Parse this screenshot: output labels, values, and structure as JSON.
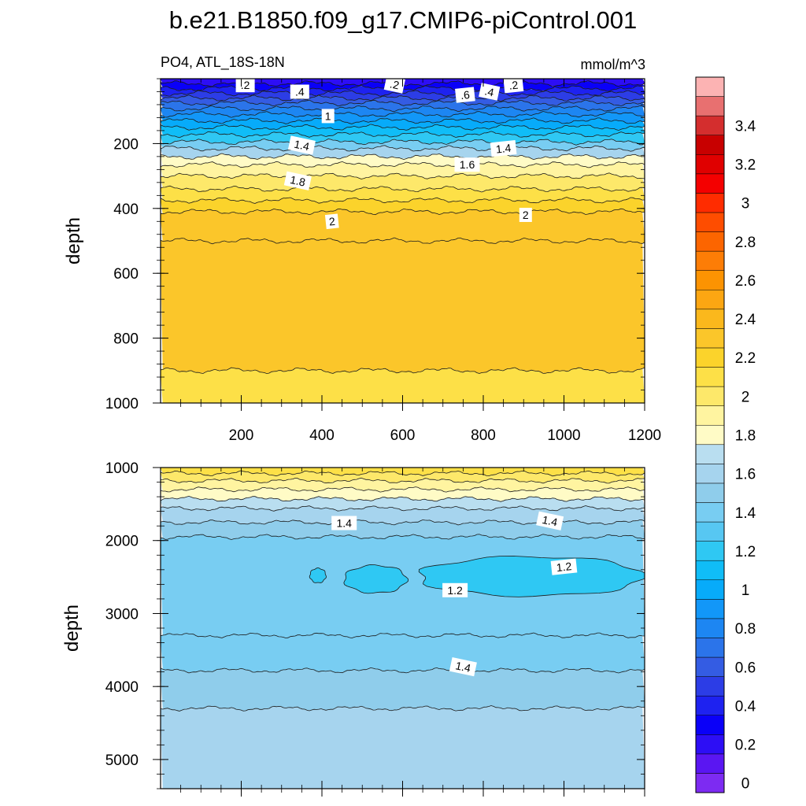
{
  "chart_data": {
    "type": "contour",
    "title": "b.e21.B1850.f09_g17.CMIP6-piControl.001",
    "variable": "PO4, ATL_18S-18N",
    "units": "mmol/m^3",
    "panels": [
      {
        "name": "upper",
        "ylabel": "depth",
        "xlim": [
          0,
          1200
        ],
        "ylim": [
          0,
          1000
        ],
        "xticks": [
          200,
          400,
          600,
          800,
          1000,
          1200
        ],
        "xticklabels": [
          "200",
          "400",
          "600",
          "800",
          "1000",
          "1200"
        ],
        "yticks": [
          200,
          400,
          600,
          800,
          1000
        ],
        "yticklabels": [
          "200",
          "400",
          "600",
          "800",
          "1000"
        ],
        "bands": [
          {
            "from": 0,
            "to": 15,
            "value": 0.1
          },
          {
            "from": 15,
            "to": 30,
            "value": 0.2
          },
          {
            "from": 30,
            "to": 45,
            "value": 0.3
          },
          {
            "from": 45,
            "to": 60,
            "value": 0.4
          },
          {
            "from": 60,
            "to": 75,
            "value": 0.5
          },
          {
            "from": 75,
            "to": 92,
            "value": 0.6
          },
          {
            "from": 92,
            "to": 110,
            "value": 0.7
          },
          {
            "from": 110,
            "to": 130,
            "value": 0.8
          },
          {
            "from": 130,
            "to": 150,
            "value": 0.9
          },
          {
            "from": 150,
            "to": 172,
            "value": 1.0
          },
          {
            "from": 172,
            "to": 195,
            "value": 1.1
          },
          {
            "from": 195,
            "to": 215,
            "value": 1.3
          },
          {
            "from": 215,
            "to": 240,
            "value": 1.5
          },
          {
            "from": 240,
            "to": 265,
            "value": 1.7
          },
          {
            "from": 265,
            "to": 300,
            "value": 1.8
          },
          {
            "from": 300,
            "to": 340,
            "value": 1.9
          },
          {
            "from": 340,
            "to": 375,
            "value": 2.0
          },
          {
            "from": 375,
            "to": 410,
            "value": 2.1
          },
          {
            "from": 410,
            "to": 500,
            "value": 2.2
          },
          {
            "from": 500,
            "to": 900,
            "value": 2.25
          },
          {
            "from": 900,
            "to": 1000,
            "value": 2.05
          }
        ],
        "contour_labels": [
          {
            "text": ".2",
            "x": 210,
            "y": 20
          },
          {
            "text": ".2",
            "x": 580,
            "y": 18
          },
          {
            "text": ".2",
            "x": 875,
            "y": 20
          },
          {
            "text": ".4",
            "x": 345,
            "y": 40
          },
          {
            "text": ".4",
            "x": 815,
            "y": 40
          },
          {
            "text": ".6",
            "x": 755,
            "y": 50
          },
          {
            "text": "1",
            "x": 415,
            "y": 115
          },
          {
            "text": "1.4",
            "x": 350,
            "y": 205
          },
          {
            "text": "1.4",
            "x": 850,
            "y": 215
          },
          {
            "text": "1.6",
            "x": 760,
            "y": 265
          },
          {
            "text": "1.8",
            "x": 340,
            "y": 315
          },
          {
            "text": "2",
            "x": 425,
            "y": 440
          },
          {
            "text": "2",
            "x": 905,
            "y": 420
          }
        ]
      },
      {
        "name": "lower",
        "ylabel": "depth",
        "xlim": [
          0,
          1200
        ],
        "ylim": [
          1000,
          5400
        ],
        "yticks": [
          1000,
          2000,
          3000,
          4000,
          5000
        ],
        "yticklabels": [
          "1000",
          "2000",
          "3000",
          "4000",
          "5000"
        ],
        "bands": [
          {
            "from": 1000,
            "to": 1080,
            "value": 2.05
          },
          {
            "from": 1080,
            "to": 1180,
            "value": 1.95
          },
          {
            "from": 1180,
            "to": 1300,
            "value": 1.85
          },
          {
            "from": 1300,
            "to": 1430,
            "value": 1.75
          },
          {
            "from": 1430,
            "to": 1560,
            "value": 1.65
          },
          {
            "from": 1560,
            "to": 1750,
            "value": 1.55
          },
          {
            "from": 1750,
            "to": 1950,
            "value": 1.45
          },
          {
            "from": 1950,
            "to": 3300,
            "value": 1.3
          },
          {
            "from": 3300,
            "to": 3780,
            "value": 1.35
          },
          {
            "from": 3780,
            "to": 4300,
            "value": 1.45
          },
          {
            "from": 4300,
            "to": 5400,
            "value": 1.55
          }
        ],
        "contour_labels": [
          {
            "text": "1.4",
            "x": 455,
            "y": 1760
          },
          {
            "text": "1.4",
            "x": 965,
            "y": 1730
          },
          {
            "text": "1.2",
            "x": 1000,
            "y": 2360
          },
          {
            "text": "1.2",
            "x": 730,
            "y": 2680
          },
          {
            "text": "1.4",
            "x": 750,
            "y": 3730
          }
        ]
      }
    ],
    "colorbar": {
      "orientation": "vertical",
      "levels": [
        0,
        0.1,
        0.2,
        0.3,
        0.4,
        0.5,
        0.6,
        0.7,
        0.8,
        0.9,
        1.0,
        1.1,
        1.2,
        1.3,
        1.4,
        1.5,
        1.6,
        1.7,
        1.8,
        1.9,
        2.0,
        2.1,
        2.2,
        2.3,
        2.4,
        2.5,
        2.6,
        2.7,
        2.8,
        2.9,
        3.0,
        3.1,
        3.2,
        3.3,
        3.4,
        3.5
      ],
      "labels": [
        "0",
        "0.2",
        "0.4",
        "0.6",
        "0.8",
        "1",
        "1.2",
        "1.4",
        "1.6",
        "1.8",
        "2",
        "2.2",
        "2.4",
        "2.6",
        "2.8",
        "3",
        "3.2",
        "3.4"
      ],
      "colors": [
        "#7d2bf2",
        "#5a16f2",
        "#2d0ef5",
        "#0a00f8",
        "#1e22f0",
        "#2c3de6",
        "#345ce3",
        "#2b74ea",
        "#1d86f2",
        "#1297f8",
        "#07abfa",
        "#10bdf7",
        "#2fc8f3",
        "#57c7f2",
        "#78cdf2",
        "#8fcdeb",
        "#a6d4ee",
        "#b9def0",
        "#fffbc6",
        "#fff4a0",
        "#fde86a",
        "#fde047",
        "#fbd32b",
        "#fbc62a",
        "#fbb81c",
        "#fca612",
        "#fc9302",
        "#fd7d06",
        "#fc6500",
        "#fe4d00",
        "#ff2c00",
        "#f40000",
        "#e00000",
        "#c80000",
        "#d42e2e",
        "#e87070",
        "#fcb3b3"
      ]
    }
  }
}
